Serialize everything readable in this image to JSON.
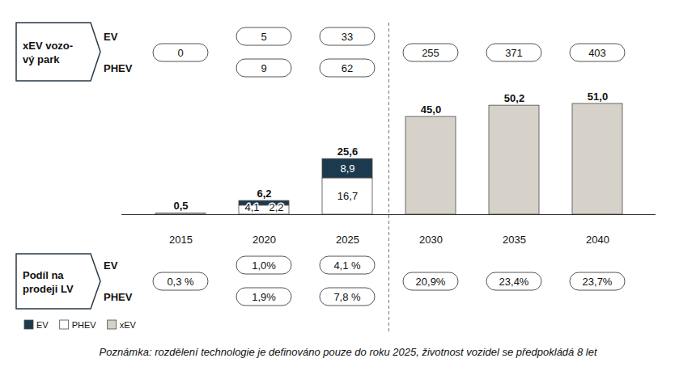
{
  "chart_data": {
    "type": "bar",
    "stacked": true,
    "data_labels": true,
    "tick_labels": "x",
    "legend": "bottom-left",
    "categories": [
      "2015",
      "2020",
      "2025",
      "2030",
      "2035",
      "2040"
    ],
    "series": [
      {
        "name": "EV",
        "color": "#1c3a4e",
        "values": [
          null,
          2.2,
          8.9,
          null,
          null,
          null
        ],
        "value_labels": [
          null,
          "2,2",
          "8,9",
          null,
          null,
          null
        ]
      },
      {
        "name": "PHEV",
        "color": "#ffffff",
        "values": [
          null,
          4.1,
          16.7,
          null,
          null,
          null
        ],
        "value_labels": [
          null,
          "4,1",
          "16,7",
          null,
          null,
          null
        ]
      },
      {
        "name": "xEV",
        "color": "#d6d2c9",
        "values": [
          0.5,
          null,
          null,
          45.0,
          50.2,
          51.0
        ],
        "value_labels": [
          "0,5",
          null,
          null,
          "45,0",
          "50,2",
          "51,0"
        ]
      }
    ],
    "totals": [
      null,
      6.2,
      25.6,
      null,
      null,
      null
    ],
    "total_labels": [
      null,
      "6,2",
      "25,6",
      null,
      null,
      null
    ],
    "fleet": {
      "title": [
        "xEV vozo-",
        "vý park"
      ],
      "rows": [
        {
          "name": "EV",
          "values": [
            null,
            5,
            33,
            null,
            null,
            null
          ]
        },
        {
          "name": "PHEV",
          "values": [
            null,
            9,
            62,
            null,
            null,
            null
          ]
        }
      ],
      "combined": [
        0,
        null,
        null,
        255,
        371,
        403
      ]
    },
    "sales_share": {
      "title": [
        "Podíl na",
        "prodeji LV"
      ],
      "rows": [
        {
          "name": "EV",
          "values": [
            null,
            1.0,
            4.1,
            null,
            null,
            null
          ],
          "value_labels": [
            null,
            "1,0%",
            "4,1 %",
            null,
            null,
            null
          ]
        },
        {
          "name": "PHEV",
          "values": [
            null,
            1.9,
            7.8,
            null,
            null,
            null
          ],
          "value_labels": [
            null,
            "1,9%",
            "7,8 %",
            null,
            null,
            null
          ]
        }
      ],
      "combined": [
        0.3,
        null,
        null,
        20.9,
        23.4,
        23.7
      ],
      "combined_labels": [
        "0,3 %",
        null,
        null,
        "20,9%",
        "23,4%",
        "23,7%"
      ]
    },
    "note": "Poznámka: rozdělení technologie je definováno pouze do roku 2025, životnost vozidel se předpokládá 8 let"
  }
}
